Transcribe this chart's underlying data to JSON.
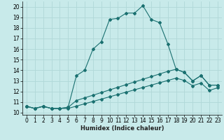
{
  "title": "",
  "xlabel": "Humidex (Indice chaleur)",
  "ylabel": "",
  "background_color": "#c8eaea",
  "grid_color": "#b0d8d8",
  "line_color": "#1a7070",
  "xlim": [
    -0.5,
    23.5
  ],
  "ylim": [
    9.8,
    20.5
  ],
  "xticks": [
    0,
    1,
    2,
    3,
    4,
    5,
    6,
    7,
    8,
    9,
    10,
    11,
    12,
    13,
    14,
    15,
    16,
    17,
    18,
    19,
    20,
    21,
    22,
    23
  ],
  "yticks": [
    10,
    11,
    12,
    13,
    14,
    15,
    16,
    17,
    18,
    19,
    20
  ],
  "line1_x": [
    0,
    1,
    2,
    3,
    4,
    5,
    6,
    7,
    8,
    9,
    10,
    11,
    12,
    13,
    14,
    15,
    16,
    17,
    18,
    19,
    20,
    21,
    22,
    23
  ],
  "line1_y": [
    10.6,
    10.4,
    10.6,
    10.4,
    10.4,
    10.5,
    13.5,
    14.0,
    16.0,
    16.7,
    18.8,
    18.9,
    19.4,
    19.4,
    20.1,
    18.8,
    18.5,
    16.5,
    14.1,
    13.8,
    13.0,
    13.5,
    12.6,
    12.6
  ],
  "line2_x": [
    0,
    1,
    2,
    3,
    4,
    5,
    6,
    7,
    8,
    9,
    10,
    11,
    12,
    13,
    14,
    15,
    16,
    17,
    18,
    19,
    20,
    21,
    22,
    23
  ],
  "line2_y": [
    10.6,
    10.4,
    10.6,
    10.4,
    10.4,
    10.5,
    11.15,
    11.4,
    11.65,
    11.9,
    12.15,
    12.4,
    12.65,
    12.9,
    13.15,
    13.4,
    13.65,
    13.9,
    14.1,
    13.8,
    13.0,
    13.5,
    12.6,
    12.6
  ],
  "line3_x": [
    0,
    1,
    2,
    3,
    4,
    5,
    6,
    7,
    8,
    9,
    10,
    11,
    12,
    13,
    14,
    15,
    16,
    17,
    18,
    19,
    20,
    21,
    22,
    23
  ],
  "line3_y": [
    10.6,
    10.4,
    10.6,
    10.4,
    10.4,
    10.4,
    10.62,
    10.84,
    11.06,
    11.28,
    11.5,
    11.72,
    11.94,
    12.16,
    12.38,
    12.6,
    12.82,
    13.04,
    13.26,
    13.04,
    12.54,
    12.8,
    12.1,
    12.35
  ],
  "xlabel_fontsize": 6,
  "tick_fontsize": 5.5
}
